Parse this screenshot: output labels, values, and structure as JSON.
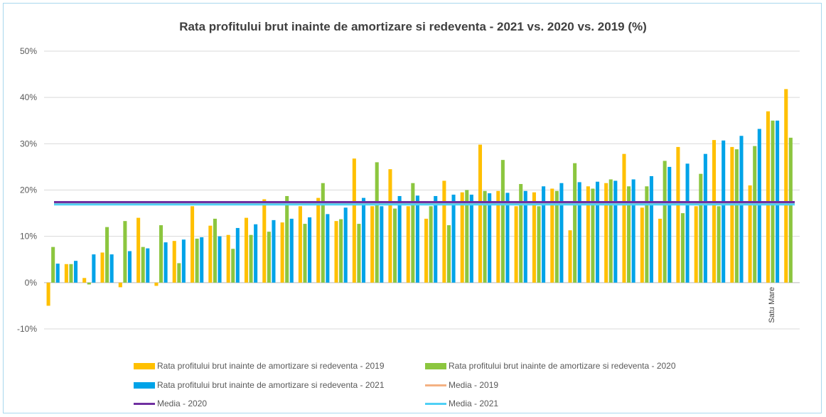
{
  "chart_data": {
    "type": "bar",
    "title": "Rata profitului brut inainte de amortizare si redeventa - 2021 vs. 2020 vs. 2019 (%)",
    "xlabel": "",
    "ylabel": "",
    "ylim": [
      -10,
      50
    ],
    "yticks": [
      -10,
      0,
      10,
      20,
      30,
      40,
      50
    ],
    "ytick_labels": [
      "-10%",
      "0%",
      "10%",
      "20%",
      "30%",
      "40%",
      "50%"
    ],
    "categories": [
      "",
      "",
      "",
      "",
      "",
      "",
      "",
      "",
      "",
      "",
      "",
      "",
      "",
      "",
      "",
      "",
      "",
      "",
      "",
      "",
      "",
      "",
      "",
      "",
      "",
      "",
      "",
      "",
      "",
      "",
      "",
      "",
      "",
      "",
      "",
      "",
      "",
      "",
      "",
      "",
      "Satu Mare",
      ""
    ],
    "series": [
      {
        "name": "Rata profitului brut inainte de amortizare si redeventa - 2019",
        "color": "#FFC000",
        "values": [
          -5,
          4,
          1,
          6.5,
          -1,
          14,
          -0.7,
          9,
          16.5,
          12.3,
          10.3,
          14,
          18,
          13,
          16.5,
          18.3,
          13.3,
          26.8,
          16.5,
          24.5,
          16.5,
          13.8,
          22,
          19.5,
          29.8,
          19.8,
          16.5,
          19.5,
          20.3,
          11.3,
          20.8,
          21.5,
          27.8,
          16.2,
          13.8,
          29.3,
          16.5,
          30.8,
          29.3,
          21,
          37,
          41.8
        ]
      },
      {
        "name": "Rata profitului brut inainte de amortizare si redeventa - 2020",
        "color": "#8CC63F",
        "values": [
          7.7,
          4,
          -0.4,
          12,
          13.3,
          7.7,
          12.4,
          4.2,
          9.5,
          13.8,
          7.3,
          10.3,
          11,
          18.7,
          12.7,
          21.5,
          13.7,
          12.7,
          26,
          16,
          21.5,
          16.5,
          12.4,
          20,
          19.8,
          26.5,
          21.3,
          16.5,
          19.8,
          25.8,
          20.3,
          22.3,
          20.8,
          20.8,
          26.3,
          15,
          23.5,
          16.5,
          28.8,
          29.5,
          35,
          31.3
        ]
      },
      {
        "name": "Rata profitului brut inainte de amortizare si redeventa - 2021",
        "color": "#00A3E8",
        "values": [
          4.1,
          4.7,
          6.1,
          6.1,
          6.8,
          7.4,
          8.7,
          9.3,
          9.8,
          10,
          11.8,
          12.6,
          13.5,
          13.8,
          14.1,
          14.8,
          16.2,
          18.3,
          16.5,
          18.7,
          18.8,
          18.7,
          19,
          19,
          19.3,
          19.4,
          19.8,
          20.8,
          21.5,
          21.7,
          21.8,
          22,
          22.3,
          23,
          25,
          25.7,
          27.8,
          30.7,
          31.7,
          33.2,
          35,
          0
        ]
      }
    ],
    "reference_lines": [
      {
        "name": "Media - 2019",
        "value": 17.3,
        "color": "#F4B183"
      },
      {
        "name": "Media - 2020",
        "value": 17.4,
        "color": "#7030A0"
      },
      {
        "name": "Media - 2021",
        "value": 16.9,
        "color": "#4FD0F5"
      }
    ],
    "grid": true,
    "legend_position": "bottom"
  },
  "legend": {
    "items": [
      {
        "label": "Rata profitului brut inainte de amortizare si redeventa - 2019",
        "color": "#FFC000",
        "kind": "bar"
      },
      {
        "label": "Rata profitului brut inainte de amortizare si redeventa - 2020",
        "color": "#8CC63F",
        "kind": "bar"
      },
      {
        "label": "Rata profitului brut inainte de amortizare si redeventa - 2021",
        "color": "#00A3E8",
        "kind": "bar"
      },
      {
        "label": "Media - 2019",
        "color": "#F4B183",
        "kind": "line"
      },
      {
        "label": "Media - 2020",
        "color": "#7030A0",
        "kind": "line"
      },
      {
        "label": "Media - 2021",
        "color": "#4FD0F5",
        "kind": "line"
      }
    ]
  }
}
